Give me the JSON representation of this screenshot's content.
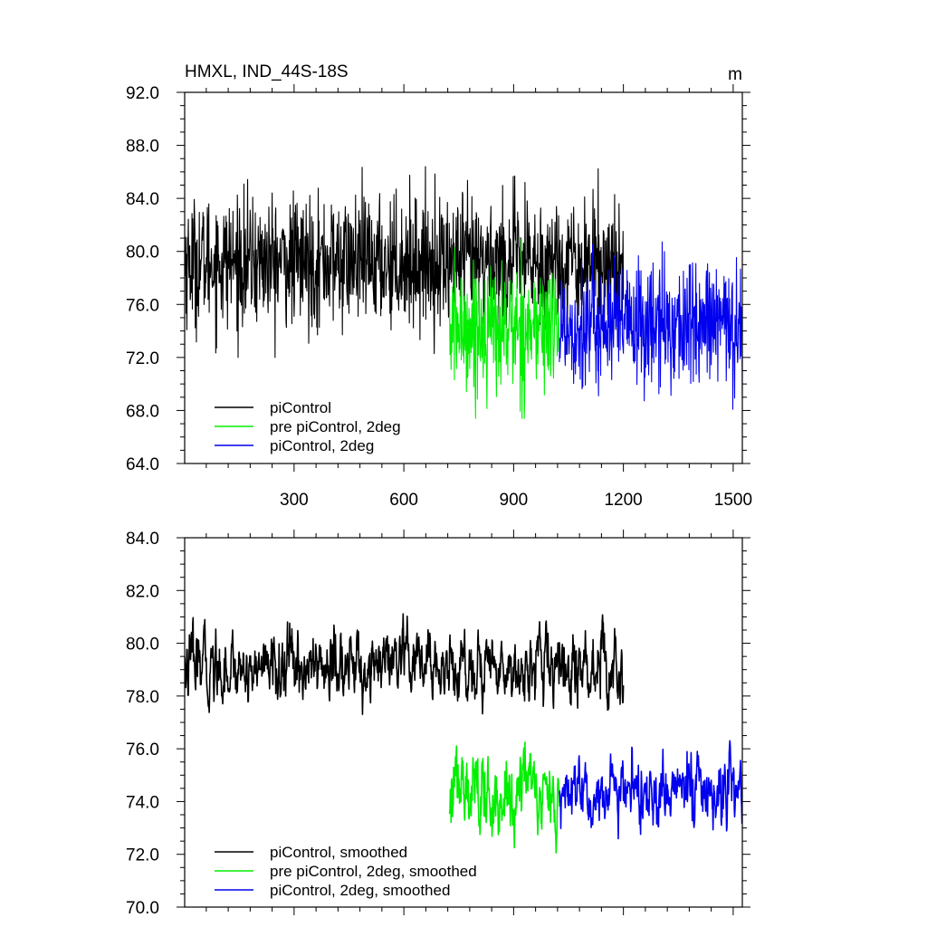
{
  "chart_data": [
    {
      "type": "line",
      "title": "HMXL, IND_44S-18S",
      "units": "m",
      "xlim": [
        1,
        1525
      ],
      "ylim": [
        64,
        92
      ],
      "x_ticks": [
        300,
        600,
        900,
        1200,
        1500
      ],
      "x_tick_labels": [
        "300",
        "600",
        "900",
        "1200",
        "1500"
      ],
      "y_ticks": [
        64,
        68,
        72,
        76,
        80,
        84,
        88,
        92
      ],
      "y_tick_labels": [
        "64.0",
        "68.0",
        "72.0",
        "76.0",
        "80.0",
        "84.0",
        "88.0",
        "92.0"
      ],
      "grid": false,
      "legend_position": "bottom-left",
      "series": [
        {
          "name": "piControl",
          "color": "#000000",
          "x_range": [
            1,
            1200
          ],
          "mean": 79.2,
          "spread": 2.4,
          "min": 72.0,
          "max": 88.3
        },
        {
          "name": "pre piControl, 2deg",
          "color": "#00ee00",
          "x_range": [
            725,
            1025
          ],
          "mean": 74.2,
          "spread": 2.4,
          "min": 67.4,
          "max": 82.6
        },
        {
          "name": "piControl, 2deg",
          "color": "#0000ee",
          "x_range": [
            1025,
            1525
          ],
          "mean": 74.4,
          "spread": 2.4,
          "min": 67.1,
          "max": 82.6
        }
      ]
    },
    {
      "type": "line",
      "xlim": [
        1,
        1525
      ],
      "ylim": [
        70,
        84
      ],
      "x_ticks": [
        300,
        600,
        900,
        1200,
        1500
      ],
      "y_ticks": [
        70,
        72,
        74,
        76,
        78,
        80,
        82,
        84
      ],
      "y_tick_labels": [
        "70.0",
        "72.0",
        "74.0",
        "76.0",
        "78.0",
        "80.0",
        "82.0",
        "84.0"
      ],
      "grid": false,
      "legend_position": "bottom-left",
      "series": [
        {
          "name": "piControl, smoothed",
          "color": "#000000",
          "x_range": [
            1,
            1200
          ],
          "mean": 79.1,
          "spread": 0.9,
          "min": 76.7,
          "max": 82.1
        },
        {
          "name": "pre piControl, 2deg, smoothed",
          "color": "#00ee00",
          "x_range": [
            725,
            1025
          ],
          "mean": 74.3,
          "spread": 1.0,
          "min": 71.7,
          "max": 76.7
        },
        {
          "name": "piControl, 2deg, smoothed",
          "color": "#0000ee",
          "x_range": [
            1025,
            1525
          ],
          "mean": 74.3,
          "spread": 0.9,
          "min": 71.3,
          "max": 77.4
        }
      ]
    }
  ]
}
